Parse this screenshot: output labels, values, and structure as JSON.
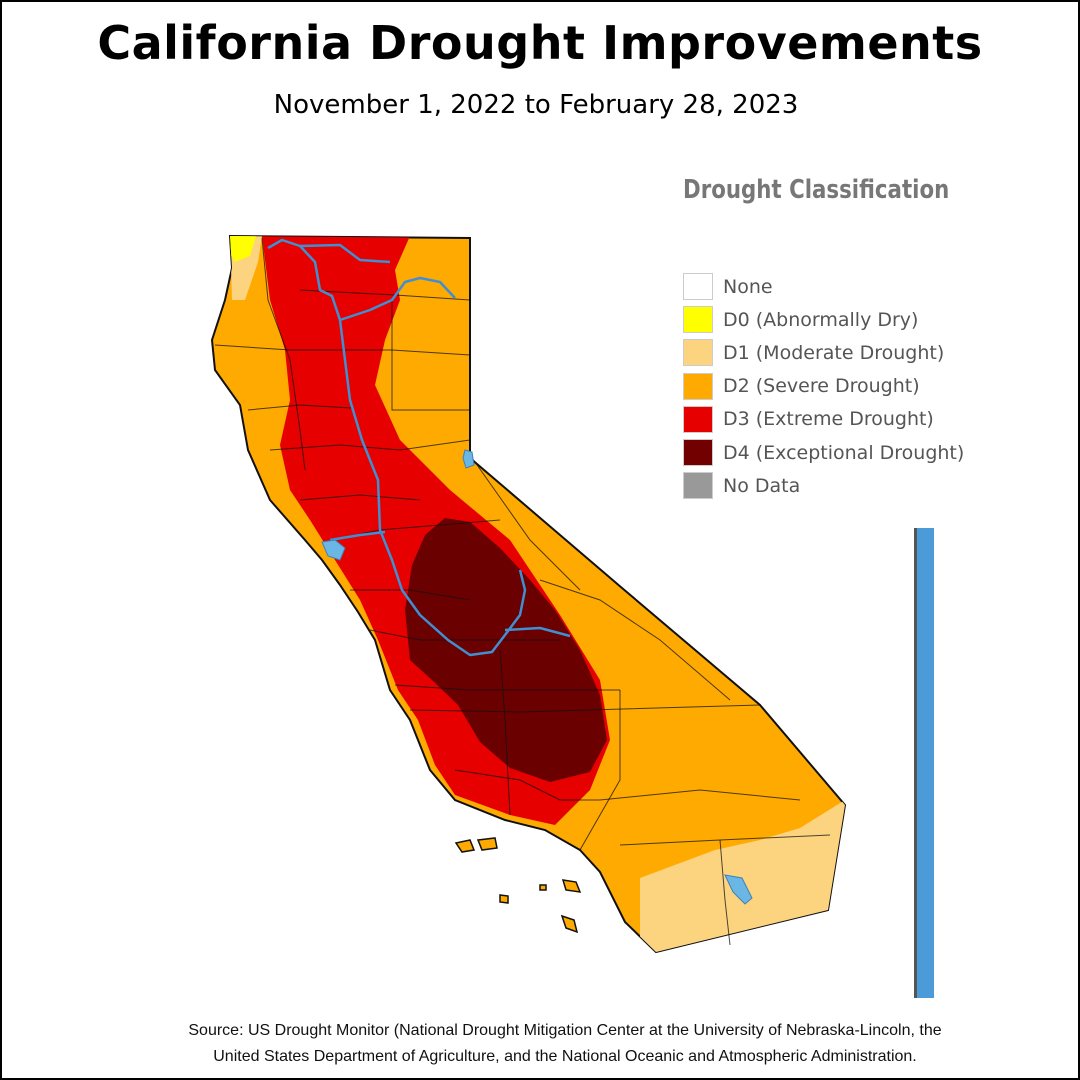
{
  "title": "California Drought Improvements",
  "subtitle": "November 1, 2022 to February 28, 2023",
  "legend": {
    "title": "Drought Classification",
    "items": [
      {
        "label": "None",
        "color": "#ffffff"
      },
      {
        "label": "D0 (Abnormally Dry)",
        "color": "#ffff00"
      },
      {
        "label": "D1 (Moderate Drought)",
        "color": "#fcd37f"
      },
      {
        "label": "D2 (Severe Drought)",
        "color": "#ffaa00"
      },
      {
        "label": "D3 (Extreme Drought)",
        "color": "#e60000"
      },
      {
        "label": "D4 (Exceptional Drought)",
        "color": "#730000"
      },
      {
        "label": "No Data",
        "color": "#999999"
      }
    ]
  },
  "map_colors": {
    "d0": "#ffff00",
    "d1": "#fcd37f",
    "d2": "#ffaa00",
    "d3": "#e60000",
    "d4": "#6b0000",
    "water": "#6ab7e6",
    "river": "#3f8fd2",
    "border": "#111111"
  },
  "timeline_color": "#4a9bd8",
  "source": {
    "line1": "Source: US Drought Monitor (National Drought Mitigation Center at the University of Nebraska-Lincoln, the",
    "line2": "United States Department of Agriculture, and the National Oceanic and Atmospheric Administration."
  }
}
